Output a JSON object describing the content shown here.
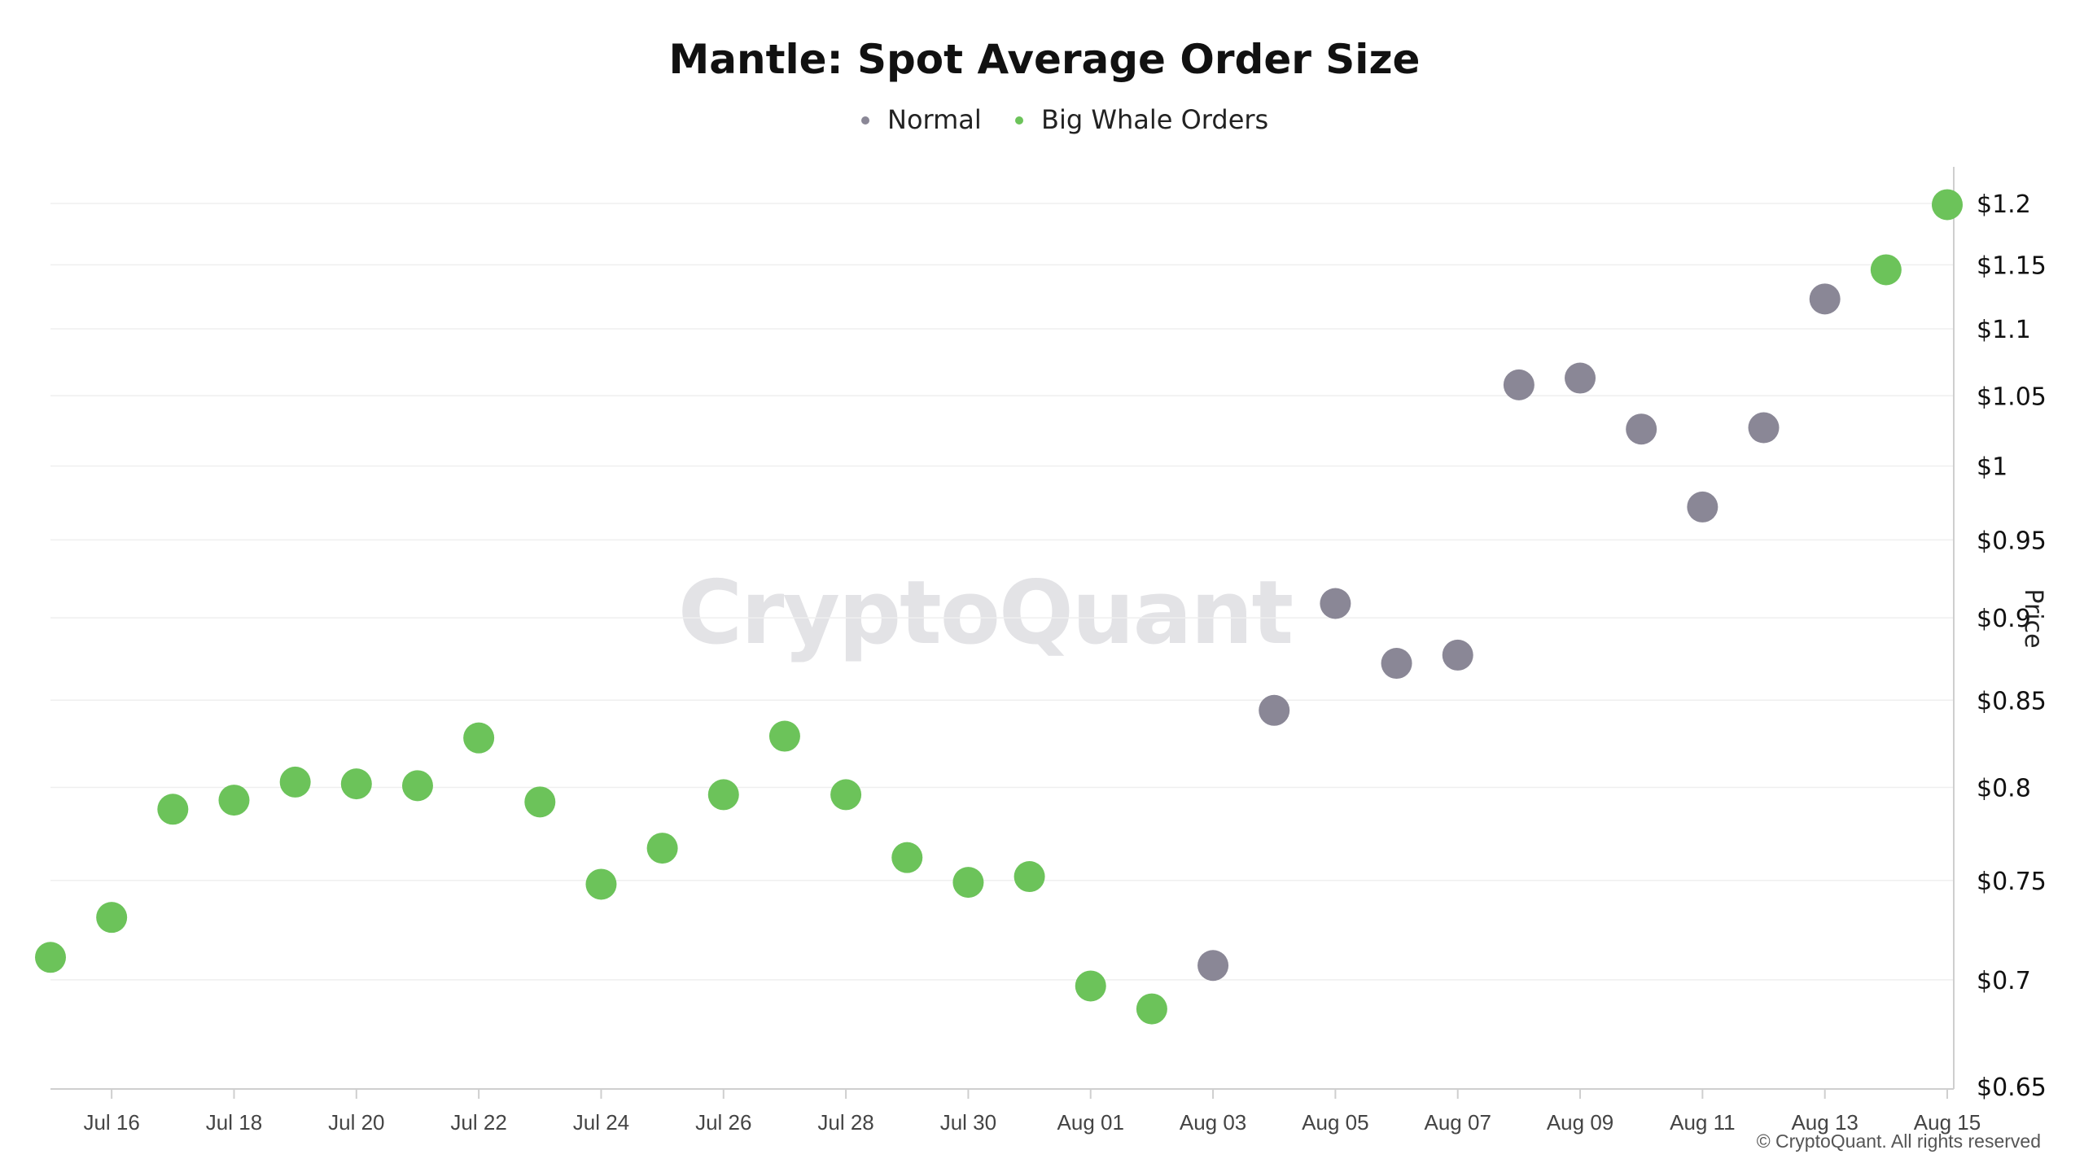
{
  "chart_data": {
    "type": "scatter",
    "title": "Mantle: Spot Average Order Size",
    "legend": {
      "placement": "top-center",
      "entries": [
        {
          "name": "Normal",
          "color": "#8a8796"
        },
        {
          "name": "Big Whale Orders",
          "color": "#6cc35a"
        }
      ]
    },
    "ylabel": "Price",
    "y_scale": "log",
    "ylim": [
      0.65,
      1.2
    ],
    "y_ticks": [
      {
        "value": 1.2,
        "label": "$1.2"
      },
      {
        "value": 1.15,
        "label": "$1.15"
      },
      {
        "value": 1.1,
        "label": "$1.1"
      },
      {
        "value": 1.05,
        "label": "$1.05"
      },
      {
        "value": 1.0,
        "label": "$1"
      },
      {
        "value": 0.95,
        "label": "$0.95"
      },
      {
        "value": 0.9,
        "label": "$0.9"
      },
      {
        "value": 0.85,
        "label": "$0.85"
      },
      {
        "value": 0.8,
        "label": "$0.8"
      },
      {
        "value": 0.75,
        "label": "$0.75"
      },
      {
        "value": 0.7,
        "label": "$0.7"
      },
      {
        "value": 0.65,
        "label": "$0.65"
      }
    ],
    "x_ticks": [
      {
        "day": 1,
        "label": "Jul 16"
      },
      {
        "day": 3,
        "label": "Jul 18"
      },
      {
        "day": 5,
        "label": "Jul 20"
      },
      {
        "day": 7,
        "label": "Jul 22"
      },
      {
        "day": 9,
        "label": "Jul 24"
      },
      {
        "day": 11,
        "label": "Jul 26"
      },
      {
        "day": 13,
        "label": "Jul 28"
      },
      {
        "day": 15,
        "label": "Jul 30"
      },
      {
        "day": 17,
        "label": "Aug 01"
      },
      {
        "day": 19,
        "label": "Aug 03"
      },
      {
        "day": 21,
        "label": "Aug 05"
      },
      {
        "day": 23,
        "label": "Aug 07"
      },
      {
        "day": 25,
        "label": "Aug 09"
      },
      {
        "day": 27,
        "label": "Aug 11"
      },
      {
        "day": 29,
        "label": "Aug 13"
      },
      {
        "day": 31,
        "label": "Aug 15"
      }
    ],
    "x_range_days": [
      0,
      31
    ],
    "x_note": "day 0 = Jul 15",
    "points": [
      {
        "date": "Jul 15",
        "day": 0,
        "price": 0.711,
        "series": "Big Whale Orders"
      },
      {
        "date": "Jul 16",
        "day": 1,
        "price": 0.731,
        "series": "Big Whale Orders"
      },
      {
        "date": "Jul 17",
        "day": 2,
        "price": 0.788,
        "series": "Big Whale Orders"
      },
      {
        "date": "Jul 18",
        "day": 3,
        "price": 0.793,
        "series": "Big Whale Orders"
      },
      {
        "date": "Jul 19",
        "day": 4,
        "price": 0.803,
        "series": "Big Whale Orders"
      },
      {
        "date": "Jul 20",
        "day": 5,
        "price": 0.802,
        "series": "Big Whale Orders"
      },
      {
        "date": "Jul 21",
        "day": 6,
        "price": 0.801,
        "series": "Big Whale Orders"
      },
      {
        "date": "Jul 22",
        "day": 7,
        "price": 0.828,
        "series": "Big Whale Orders"
      },
      {
        "date": "Jul 23",
        "day": 8,
        "price": 0.792,
        "series": "Big Whale Orders"
      },
      {
        "date": "Jul 24",
        "day": 9,
        "price": 0.748,
        "series": "Big Whale Orders"
      },
      {
        "date": "Jul 25",
        "day": 10,
        "price": 0.767,
        "series": "Big Whale Orders"
      },
      {
        "date": "Jul 26",
        "day": 11,
        "price": 0.796,
        "series": "Big Whale Orders"
      },
      {
        "date": "Jul 27",
        "day": 12,
        "price": 0.829,
        "series": "Big Whale Orders"
      },
      {
        "date": "Jul 28",
        "day": 13,
        "price": 0.796,
        "series": "Big Whale Orders"
      },
      {
        "date": "Jul 29",
        "day": 14,
        "price": 0.762,
        "series": "Big Whale Orders"
      },
      {
        "date": "Jul 30",
        "day": 15,
        "price": 0.749,
        "series": "Big Whale Orders"
      },
      {
        "date": "Jul 31",
        "day": 16,
        "price": 0.752,
        "series": "Big Whale Orders"
      },
      {
        "date": "Aug 01",
        "day": 17,
        "price": 0.697,
        "series": "Big Whale Orders"
      },
      {
        "date": "Aug 02",
        "day": 18,
        "price": 0.686,
        "series": "Big Whale Orders"
      },
      {
        "date": "Aug 03",
        "day": 19,
        "price": 0.707,
        "series": "Normal"
      },
      {
        "date": "Aug 04",
        "day": 20,
        "price": 0.844,
        "series": "Normal"
      },
      {
        "date": "Aug 05",
        "day": 21,
        "price": 0.909,
        "series": "Normal"
      },
      {
        "date": "Aug 06",
        "day": 22,
        "price": 0.872,
        "series": "Normal"
      },
      {
        "date": "Aug 07",
        "day": 23,
        "price": 0.877,
        "series": "Normal"
      },
      {
        "date": "Aug 08",
        "day": 24,
        "price": 1.058,
        "series": "Normal"
      },
      {
        "date": "Aug 09",
        "day": 25,
        "price": 1.063,
        "series": "Normal"
      },
      {
        "date": "Aug 10",
        "day": 26,
        "price": 1.026,
        "series": "Normal"
      },
      {
        "date": "Aug 11",
        "day": 27,
        "price": 0.972,
        "series": "Normal"
      },
      {
        "date": "Aug 12",
        "day": 28,
        "price": 1.027,
        "series": "Normal"
      },
      {
        "date": "Aug 13",
        "day": 29,
        "price": 1.123,
        "series": "Normal"
      },
      {
        "date": "Aug 14",
        "day": 30,
        "price": 1.146,
        "series": "Big Whale Orders"
      },
      {
        "date": "Aug 15",
        "day": 31,
        "price": 1.199,
        "series": "Big Whale Orders"
      }
    ],
    "watermark": "CryptoQuant",
    "copyright": "© CryptoQuant. All rights reserved"
  }
}
